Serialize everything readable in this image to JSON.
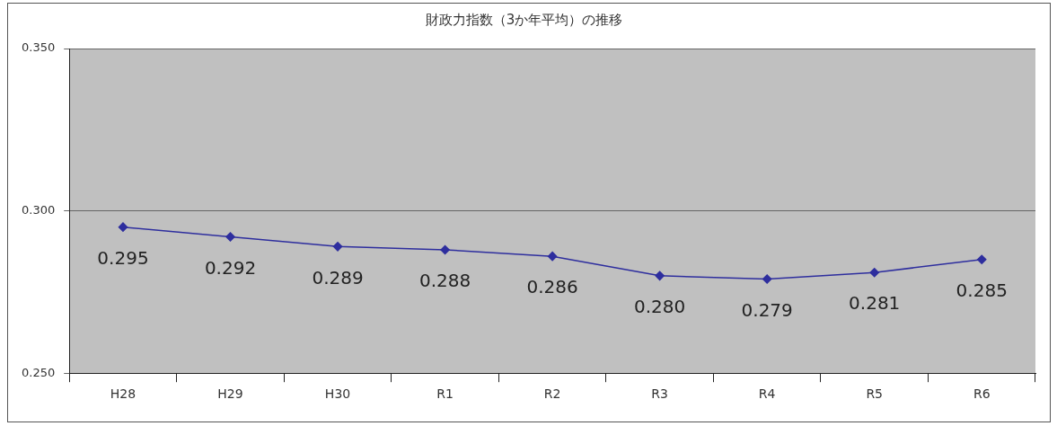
{
  "chart_data": {
    "type": "line",
    "title": "財政力指数（3か年平均）の推移",
    "categories": [
      "H28",
      "H29",
      "H30",
      "R1",
      "R2",
      "R3",
      "R4",
      "R5",
      "R6"
    ],
    "series": [
      {
        "color": "#2e2e9e",
        "values": [
          0.295,
          0.292,
          0.289,
          0.288,
          0.286,
          0.28,
          0.279,
          0.281,
          0.285
        ],
        "value_labels": [
          "0.295",
          "0.292",
          "0.289",
          "0.288",
          "0.286",
          "0.280",
          "0.279",
          "0.281",
          "0.285"
        ]
      }
    ],
    "ylim": [
      0.25,
      0.35
    ],
    "yticks": [
      {
        "value": 0.25,
        "label": "0.250"
      },
      {
        "value": 0.3,
        "label": "0.300"
      },
      {
        "value": 0.35,
        "label": "0.350"
      }
    ],
    "grid": "y",
    "legend": false,
    "marker": "diamond",
    "line_style": "solid"
  }
}
